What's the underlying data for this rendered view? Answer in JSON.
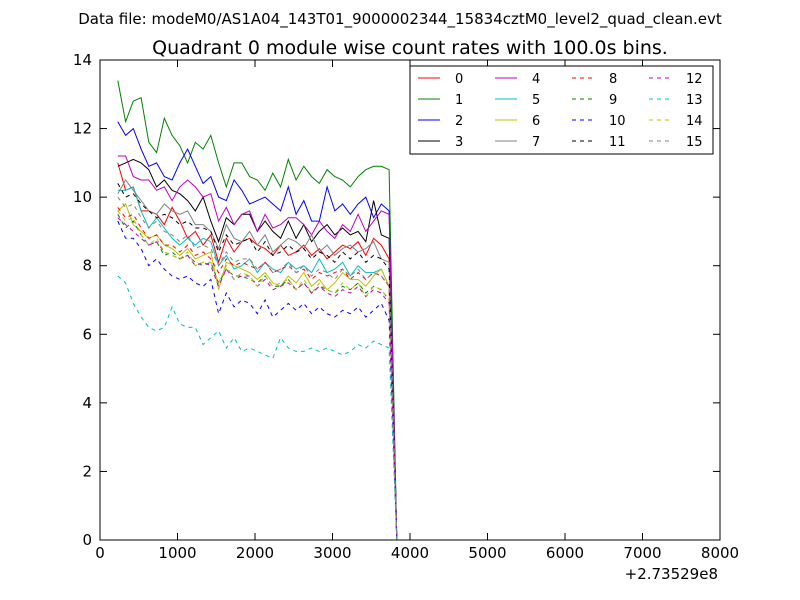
{
  "chart_data": {
    "type": "line",
    "suptitle": "Data file: modeM0/AS1A04_143T01_9000002344_15834cztM0_level2_quad_clean.evt",
    "title": "Quadrant 0 module wise count rates with 100.0s bins.",
    "xlabel": "",
    "ylabel": "",
    "x_offset_label": "+2.73529e8",
    "xlim": [
      0,
      8000
    ],
    "ylim": [
      0,
      14
    ],
    "xticks": [
      "0",
      "1000",
      "2000",
      "3000",
      "4000",
      "5000",
      "6000",
      "7000",
      "8000"
    ],
    "yticks": [
      "0",
      "2",
      "4",
      "6",
      "8",
      "10",
      "12",
      "14"
    ],
    "x": [
      230,
      330,
      430,
      530,
      630,
      730,
      830,
      930,
      1030,
      1130,
      1230,
      1330,
      1430,
      1530,
      1630,
      1730,
      1830,
      1930,
      2030,
      2130,
      2230,
      2330,
      2430,
      2530,
      2630,
      2730,
      2830,
      2930,
      3030,
      3130,
      3230,
      3330,
      3430,
      3530,
      3630,
      3730,
      3830,
      3930,
      4030,
      4130,
      4230,
      4330,
      4430,
      4530,
      4630,
      4730,
      4830,
      4930,
      5030,
      5130,
      5230,
      5330,
      5430,
      5530,
      5630,
      5730,
      5830,
      5930,
      6030,
      6130,
      6230,
      6330,
      6430,
      6530,
      6630,
      6730,
      6830,
      6930,
      7030,
      7130,
      7230,
      7330
    ],
    "legend": {
      "placement": "top-right",
      "columns": 4,
      "entries": [
        "0",
        "1",
        "2",
        "3",
        "4",
        "5",
        "6",
        "7",
        "8",
        "9",
        "10",
        "11",
        "12",
        "13",
        "14",
        "15"
      ]
    },
    "series": [
      {
        "name": "0",
        "color": "#ff0000",
        "dash": "solid",
        "values": [
          11.0,
          10.2,
          10.3,
          9.6,
          9.6,
          9.5,
          9.2,
          9.7,
          9.3,
          8.8,
          9.0,
          8.6,
          8.9,
          8.1,
          8.8,
          8.4,
          8.7,
          8.8,
          8.6,
          8.5,
          8.3,
          8.6,
          8.3,
          8.4,
          8.6,
          8.3,
          8.5,
          8.2,
          8.4,
          8.6,
          8.5,
          8.7,
          8.3,
          8.8,
          8.6,
          8.2,
          0,
          0,
          0,
          0,
          0,
          0,
          0,
          0,
          0,
          0,
          0,
          0,
          0,
          0,
          0,
          0,
          0,
          0,
          0,
          0,
          0,
          0,
          0,
          0,
          0,
          0,
          0,
          0,
          0,
          0,
          0,
          0,
          0,
          0,
          0,
          0
        ]
      },
      {
        "name": "1",
        "color": "#008000",
        "dash": "solid",
        "values": [
          13.4,
          12.2,
          12.8,
          12.9,
          11.6,
          11.3,
          12.3,
          11.8,
          11.5,
          11.0,
          11.6,
          11.4,
          11.8,
          11.0,
          10.3,
          11.0,
          11.0,
          10.6,
          10.5,
          10.2,
          10.7,
          10.3,
          11.1,
          10.5,
          10.9,
          10.6,
          10.4,
          10.8,
          10.6,
          10.5,
          10.3,
          10.6,
          10.8,
          10.9,
          10.9,
          10.8,
          0,
          0,
          0,
          0,
          0,
          0,
          0,
          0,
          0,
          0,
          0,
          0,
          0,
          0,
          0,
          0,
          0,
          0,
          0,
          0,
          0,
          0,
          0,
          0,
          0,
          0,
          0,
          0,
          0,
          0,
          0,
          0,
          0,
          0,
          0,
          0
        ]
      },
      {
        "name": "2",
        "color": "#0000ff",
        "dash": "solid",
        "values": [
          12.2,
          11.8,
          12.0,
          11.4,
          10.9,
          11.0,
          10.6,
          10.5,
          11.0,
          11.4,
          10.9,
          10.4,
          10.6,
          10.0,
          9.9,
          10.5,
          10.2,
          9.8,
          9.9,
          10.0,
          9.8,
          9.6,
          10.3,
          9.5,
          9.9,
          9.3,
          9.3,
          10.3,
          9.6,
          9.8,
          9.5,
          9.8,
          10.0,
          9.4,
          9.8,
          9.6,
          0,
          0,
          0,
          0,
          0,
          0,
          0,
          0,
          0,
          0,
          0,
          0,
          0,
          0,
          0,
          0,
          0,
          0,
          0,
          0,
          0,
          0,
          0,
          0,
          0,
          0,
          0,
          0,
          0,
          0,
          0,
          0,
          0,
          0,
          0,
          0
        ]
      },
      {
        "name": "3",
        "color": "#000000",
        "dash": "solid",
        "values": [
          10.9,
          11.0,
          11.1,
          11.0,
          10.8,
          10.3,
          10.5,
          10.2,
          10.1,
          9.9,
          9.6,
          10.0,
          9.3,
          8.7,
          9.4,
          9.2,
          9.5,
          9.5,
          9.0,
          9.3,
          9.0,
          8.8,
          9.3,
          8.8,
          9.2,
          8.7,
          9.0,
          9.2,
          8.9,
          9.1,
          8.9,
          9.0,
          8.7,
          9.9,
          8.9,
          8.8,
          0,
          0,
          0,
          0,
          0,
          0,
          0,
          0,
          0,
          0,
          0,
          0,
          0,
          0,
          0,
          0,
          0,
          0,
          0,
          0,
          0,
          0,
          0,
          0,
          0,
          0,
          0,
          0,
          0,
          0,
          0,
          0,
          0,
          0,
          0,
          0
        ]
      },
      {
        "name": "4",
        "color": "#bf00bf",
        "dash": "solid",
        "values": [
          11.2,
          11.2,
          10.6,
          10.5,
          10.5,
          10.2,
          10.3,
          9.9,
          10.3,
          10.5,
          10.3,
          10.0,
          10.1,
          9.3,
          9.7,
          9.2,
          9.5,
          9.6,
          9.0,
          9.5,
          9.1,
          9.2,
          9.4,
          9.4,
          9.2,
          8.9,
          9.3,
          9.0,
          8.8,
          9.2,
          9.0,
          9.5,
          9.0,
          9.3,
          9.6,
          9.5,
          0,
          0,
          0,
          0,
          0,
          0,
          0,
          0,
          0,
          0,
          0,
          0,
          0,
          0,
          0,
          0,
          0,
          0,
          0,
          0,
          0,
          0,
          0,
          0,
          0,
          0,
          0,
          0,
          0,
          0,
          0,
          0,
          0,
          0,
          0,
          0
        ]
      },
      {
        "name": "5",
        "color": "#00bfbf",
        "dash": "solid",
        "values": [
          10.2,
          10.2,
          10.3,
          9.6,
          9.1,
          9.4,
          9.1,
          8.8,
          8.6,
          8.8,
          8.6,
          8.8,
          8.7,
          8.0,
          8.3,
          7.9,
          8.0,
          8.2,
          7.8,
          8.1,
          7.9,
          7.8,
          8.1,
          7.9,
          8.0,
          7.8,
          8.2,
          7.8,
          7.9,
          8.1,
          7.7,
          8.0,
          7.8,
          7.8,
          7.9,
          7.4,
          0,
          0,
          0,
          0,
          0,
          0,
          0,
          0,
          0,
          0,
          0,
          0,
          0,
          0,
          0,
          0,
          0,
          0,
          0,
          0,
          0,
          0,
          0,
          0,
          0,
          0,
          0,
          0,
          0,
          0,
          0,
          0,
          0,
          0,
          0,
          0
        ]
      },
      {
        "name": "6",
        "color": "#bfbf00",
        "dash": "solid",
        "values": [
          9.6,
          9.8,
          9.2,
          9.0,
          8.8,
          8.9,
          8.6,
          8.5,
          8.3,
          8.5,
          8.2,
          8.3,
          8.4,
          7.3,
          8.1,
          8.0,
          7.9,
          7.8,
          7.6,
          7.8,
          7.5,
          7.4,
          7.7,
          7.5,
          7.8,
          7.4,
          7.6,
          7.3,
          7.5,
          7.8,
          7.6,
          7.6,
          7.4,
          7.7,
          7.9,
          7.4,
          0,
          0,
          0,
          0,
          0,
          0,
          0,
          0,
          0,
          0,
          0,
          0,
          0,
          0,
          0,
          0,
          0,
          0,
          0,
          0,
          0,
          0,
          0,
          0,
          0,
          0,
          0,
          0,
          0,
          0,
          0,
          0,
          0,
          0,
          0,
          0
        ]
      },
      {
        "name": "7",
        "color": "#808080",
        "dash": "solid",
        "values": [
          10.1,
          10.5,
          10.2,
          9.9,
          9.6,
          9.5,
          9.8,
          9.6,
          9.5,
          9.6,
          9.2,
          9.2,
          9.0,
          8.5,
          9.2,
          8.8,
          8.7,
          9.0,
          8.6,
          8.9,
          8.4,
          8.6,
          8.8,
          8.7,
          8.5,
          8.9,
          8.4,
          8.6,
          8.3,
          8.5,
          8.6,
          8.4,
          8.5,
          8.7,
          8.2,
          8.1,
          0,
          0,
          0,
          0,
          0,
          0,
          0,
          0,
          0,
          0,
          0,
          0,
          0,
          0,
          0,
          0,
          0,
          0,
          0,
          0,
          0,
          0,
          0,
          0,
          0,
          0,
          0,
          0,
          0,
          0,
          0,
          0,
          0,
          0,
          0,
          0
        ]
      },
      {
        "name": "8",
        "color": "#ff0000",
        "dash": "dashed",
        "values": [
          9.7,
          9.4,
          9.5,
          9.1,
          8.8,
          8.9,
          8.6,
          8.6,
          8.4,
          8.6,
          8.3,
          8.4,
          8.2,
          7.8,
          8.2,
          8.0,
          8.1,
          8.0,
          7.9,
          8.1,
          7.8,
          7.9,
          8.0,
          7.8,
          7.9,
          7.6,
          7.8,
          7.7,
          7.8,
          7.9,
          7.6,
          7.8,
          7.6,
          7.8,
          7.7,
          7.4,
          0,
          0,
          0,
          0,
          0,
          0,
          0,
          0,
          0,
          0,
          0,
          0,
          0,
          0,
          0,
          0,
          0,
          0,
          0,
          0,
          0,
          0,
          0,
          0,
          0,
          0,
          0,
          0,
          0,
          0,
          0,
          0,
          0,
          0,
          0,
          0
        ]
      },
      {
        "name": "9",
        "color": "#008000",
        "dash": "dashed",
        "values": [
          9.5,
          9.1,
          9.3,
          8.9,
          8.6,
          8.7,
          8.3,
          8.4,
          8.2,
          8.3,
          8.1,
          8.0,
          8.1,
          7.5,
          7.9,
          7.7,
          7.7,
          7.6,
          7.5,
          7.7,
          7.4,
          7.4,
          7.6,
          7.3,
          7.5,
          7.2,
          7.4,
          7.3,
          7.2,
          7.4,
          7.3,
          7.5,
          7.2,
          7.4,
          7.3,
          7.0,
          0,
          0,
          0,
          0,
          0,
          0,
          0,
          0,
          0,
          0,
          0,
          0,
          0,
          0,
          0,
          0,
          0,
          0,
          0,
          0,
          0,
          0,
          0,
          0,
          0,
          0,
          0,
          0,
          0,
          0,
          0,
          0,
          0,
          0,
          0,
          0
        ]
      },
      {
        "name": "10",
        "color": "#0000ff",
        "dash": "dashed",
        "values": [
          9.3,
          8.8,
          8.8,
          8.5,
          8.0,
          8.2,
          7.9,
          7.7,
          7.6,
          7.7,
          7.5,
          7.4,
          7.6,
          6.6,
          7.2,
          6.8,
          7.0,
          6.9,
          6.6,
          7.0,
          6.5,
          6.7,
          6.9,
          6.7,
          6.9,
          6.6,
          6.8,
          6.6,
          6.5,
          6.7,
          6.6,
          6.8,
          6.5,
          6.7,
          6.9,
          6.4,
          0,
          0,
          0,
          0,
          0,
          0,
          0,
          0,
          0,
          0,
          0,
          0,
          0,
          0,
          0,
          0,
          0,
          0,
          0,
          0,
          0,
          0,
          0,
          0,
          0,
          0,
          0,
          0,
          0,
          0,
          0,
          0,
          0,
          0,
          0,
          0
        ]
      },
      {
        "name": "11",
        "color": "#000000",
        "dash": "dashed",
        "values": [
          10.4,
          10.0,
          10.1,
          9.8,
          9.6,
          9.4,
          9.5,
          9.4,
          9.2,
          9.3,
          9.1,
          9.1,
          9.0,
          8.4,
          8.9,
          8.6,
          8.7,
          8.8,
          8.4,
          8.7,
          8.3,
          8.4,
          8.6,
          8.4,
          8.5,
          8.2,
          8.4,
          8.3,
          8.1,
          8.4,
          8.2,
          8.4,
          8.1,
          8.3,
          8.2,
          7.9,
          0,
          0,
          0,
          0,
          0,
          0,
          0,
          0,
          0,
          0,
          0,
          0,
          0,
          0,
          0,
          0,
          0,
          0,
          0,
          0,
          0,
          0,
          0,
          0,
          0,
          0,
          0,
          0,
          0,
          0,
          0,
          0,
          0,
          0,
          0,
          0
        ]
      },
      {
        "name": "12",
        "color": "#bf00bf",
        "dash": "dashed",
        "values": [
          9.4,
          9.2,
          9.0,
          8.8,
          8.6,
          8.7,
          8.4,
          8.3,
          8.2,
          8.3,
          8.0,
          8.1,
          8.0,
          7.4,
          7.9,
          7.6,
          7.7,
          7.7,
          7.4,
          7.6,
          7.3,
          7.4,
          7.5,
          7.3,
          7.5,
          7.2,
          7.4,
          7.2,
          7.1,
          7.3,
          7.2,
          7.4,
          7.1,
          7.3,
          7.2,
          6.9,
          0,
          0,
          0,
          0,
          0,
          0,
          0,
          0,
          0,
          0,
          0,
          0,
          0,
          0,
          0,
          0,
          0,
          0,
          0,
          0,
          0,
          0,
          0,
          0,
          0,
          0,
          0,
          0,
          0,
          0,
          0,
          0,
          0,
          0,
          0,
          0
        ]
      },
      {
        "name": "13",
        "color": "#00bfbf",
        "dash": "dashed",
        "values": [
          7.7,
          7.5,
          6.9,
          6.5,
          6.2,
          6.1,
          6.2,
          6.8,
          6.3,
          6.2,
          6.2,
          5.7,
          5.9,
          6.1,
          5.6,
          5.9,
          5.5,
          5.6,
          5.5,
          5.4,
          5.3,
          5.9,
          5.6,
          5.5,
          5.5,
          5.6,
          5.5,
          5.6,
          5.5,
          5.4,
          5.5,
          5.7,
          5.6,
          5.8,
          5.7,
          5.6,
          0,
          0,
          0,
          0,
          0,
          0,
          0,
          0,
          0,
          0,
          0,
          0,
          0,
          0,
          0,
          0,
          0,
          0,
          0,
          0,
          0,
          0,
          0,
          0,
          0,
          0,
          0,
          0,
          0,
          0,
          0,
          0,
          0,
          0,
          0,
          0
        ]
      },
      {
        "name": "14",
        "color": "#bfbf00",
        "dash": "dashed",
        "values": [
          9.6,
          9.3,
          9.4,
          8.9,
          8.6,
          8.8,
          8.4,
          8.3,
          8.2,
          8.4,
          8.0,
          8.1,
          8.1,
          7.5,
          8.0,
          7.6,
          7.8,
          7.7,
          7.4,
          7.7,
          7.4,
          7.5,
          7.6,
          7.3,
          7.6,
          7.2,
          7.5,
          7.3,
          7.2,
          7.5,
          7.3,
          7.5,
          7.1,
          7.4,
          7.3,
          7.0,
          0,
          0,
          0,
          0,
          0,
          0,
          0,
          0,
          0,
          0,
          0,
          0,
          0,
          0,
          0,
          0,
          0,
          0,
          0,
          0,
          0,
          0,
          0,
          0,
          0,
          0,
          0,
          0,
          0,
          0,
          0,
          0,
          0,
          0,
          0,
          0
        ]
      },
      {
        "name": "15",
        "color": "#808080",
        "dash": "dashed",
        "values": [
          10.0,
          9.7,
          9.8,
          9.4,
          9.1,
          9.3,
          9.0,
          8.9,
          8.7,
          8.9,
          8.5,
          8.6,
          8.5,
          8.0,
          8.4,
          8.1,
          8.2,
          8.2,
          7.9,
          8.1,
          7.8,
          7.9,
          8.1,
          7.8,
          8.0,
          7.7,
          7.9,
          7.8,
          7.6,
          7.9,
          7.7,
          7.9,
          7.6,
          7.8,
          7.7,
          7.4,
          0,
          0,
          0,
          0,
          0,
          0,
          0,
          0,
          0,
          0,
          0,
          0,
          0,
          0,
          0,
          0,
          0,
          0,
          0,
          0,
          0,
          0,
          0,
          0,
          0,
          0,
          0,
          0,
          0,
          0,
          0,
          0,
          0,
          0,
          0,
          0
        ]
      }
    ]
  }
}
